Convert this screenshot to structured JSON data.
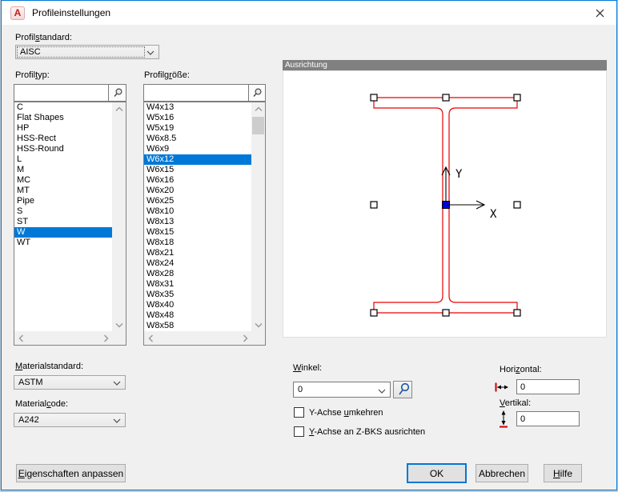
{
  "window": {
    "title": "Profileinstellungen"
  },
  "icons": {
    "app-icon": "A",
    "close-icon": "✕",
    "search-icon": "⌕",
    "dropdown-chevron-icon": "⌄",
    "scroll-up-icon": "∧",
    "scroll-down-icon": "∨",
    "scroll-left-icon": "‹",
    "scroll-right-icon": "›",
    "pick-point-icon": "lollipop-pick",
    "horizontal-offset-icon": "↔",
    "vertical-offset-icon": "↕"
  },
  "labels": {
    "profilstandard": {
      "pre": "Profil",
      "mn": "s",
      "post": "tandard:"
    },
    "profiltyp": {
      "pre": "Profil",
      "mn": "t",
      "post": "yp:"
    },
    "profilgroesse": {
      "pre": "Profilg",
      "mn": "r",
      "post": "öße:"
    },
    "winkel": {
      "pre": "",
      "mn": "W",
      "post": "inkel:"
    },
    "y_umkehren": {
      "pre": "Y-Achse ",
      "mn": "u",
      "post": "mkehren"
    },
    "y_zbks": {
      "pre": "",
      "mn": "Y",
      "post": "-Achse an Z-BKS ausrichten"
    },
    "horizontal": {
      "pre": "Hori",
      "mn": "z",
      "post": "ontal:"
    },
    "vertikal": {
      "pre": "",
      "mn": "V",
      "post": "ertikal:"
    },
    "materialstandard": {
      "pre": "",
      "mn": "M",
      "post": "aterialstandard:"
    },
    "materialcode": {
      "pre": "Material",
      "mn": "c",
      "post": "ode:"
    }
  },
  "fields": {
    "profilstandard_value": "AISC",
    "profiltyp_search": "",
    "profilgroesse_search": "",
    "winkel_value": "0",
    "horizontal_value": "0",
    "vertical_value": "0",
    "materialstandard_value": "ASTM",
    "materialcode_value": "A242"
  },
  "profiltyp": {
    "items": [
      "C",
      "Flat Shapes",
      "HP",
      "HSS-Rect",
      "HSS-Round",
      "L",
      "M",
      "MC",
      "MT",
      "Pipe",
      "S",
      "ST",
      "W",
      "WT"
    ],
    "selected": "W"
  },
  "profilgroesse": {
    "items": [
      "W4x13",
      "W5x16",
      "W5x19",
      "W6x8.5",
      "W6x9",
      "W6x12",
      "W6x15",
      "W6x16",
      "W6x20",
      "W6x25",
      "W8x10",
      "W8x13",
      "W8x15",
      "W8x18",
      "W8x21",
      "W8x24",
      "W8x28",
      "W8x31",
      "W8x35",
      "W8x40",
      "W8x48",
      "W8x58"
    ],
    "selected": "W6x12"
  },
  "ausrichtung": {
    "header": "Ausrichtung",
    "axis_x": "X",
    "axis_y": "Y"
  },
  "checkboxes": {
    "y_umkehren_checked": false,
    "y_zbks_checked": false
  },
  "buttons": {
    "eigenschaften": {
      "pre": "",
      "mn": "E",
      "post": "igenschaften anpassen"
    },
    "ok": "OK",
    "abbrechen": "Abbrechen",
    "hilfe": {
      "pre": "",
      "mn": "H",
      "post": "ilfe"
    }
  },
  "colors": {
    "accent": "#0078d7",
    "selection": "#0078d7",
    "profile_stroke": "#ea0000",
    "origin_grip_fill": "#0000dc",
    "panel_header_bg": "#808080",
    "dialog_bg": "#f0f0f0"
  }
}
